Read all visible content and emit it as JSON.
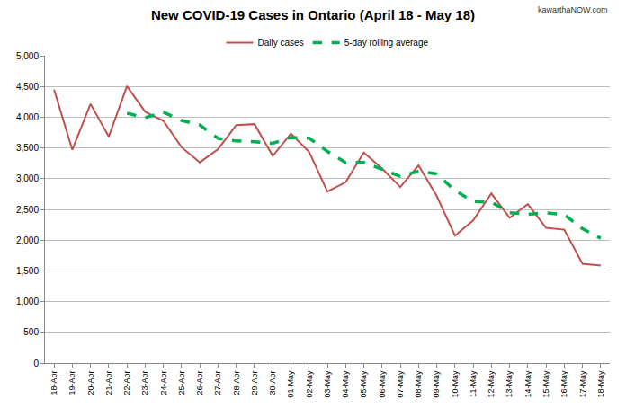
{
  "chart_data": {
    "type": "line",
    "title": "New COVID-19 Cases in Ontario (April 18 - May 18)",
    "annotations": [
      "kawarthaNOW.com"
    ],
    "categories": [
      "18-Apr",
      "19-Apr",
      "20-Apr",
      "21-Apr",
      "22-Apr",
      "23-Apr",
      "24-Apr",
      "25-Apr",
      "26-Apr",
      "27-Apr",
      "28-Apr",
      "29-Apr",
      "30-Apr",
      "01-May",
      "02-May",
      "03-May",
      "04-May",
      "05-May",
      "06-May",
      "07-May",
      "08-May",
      "09-May",
      "10-May",
      "11-May",
      "12-May",
      "13-May",
      "14-May",
      "15-May",
      "16-May",
      "17-May",
      "18-May"
    ],
    "series": [
      {
        "name": "Daily cases",
        "color": "#c0504d",
        "line_style": "solid",
        "values": [
          4447,
          3469,
          4216,
          3684,
          4505,
          4087,
          3940,
          3510,
          3265,
          3480,
          3871,
          3887,
          3369,
          3732,
          3436,
          2791,
          2941,
          3424,
          3166,
          2864,
          3216,
          2719,
          2073,
          2320,
          2759,
          2362,
          2584,
          2199,
          2170,
          1616,
          1588
        ]
      },
      {
        "name": "5-day rolling average",
        "color": "#00b050",
        "line_style": "dashed",
        "values": [
          null,
          null,
          null,
          null,
          4064,
          3992,
          4082,
          3947,
          3873,
          3656,
          3613,
          3601,
          3574,
          3668,
          3659,
          3443,
          3261,
          3265,
          3152,
          3037,
          3122,
          3078,
          2808,
          2627,
          2617,
          2447,
          2420,
          2445,
          2415,
          2186,
          2031
        ]
      }
    ],
    "ylim": [
      0,
      5000
    ],
    "yticks": [
      0,
      500,
      {
        "value": 1000,
        "label": "1,000"
      },
      {
        "value": 1500,
        "label": "1,500"
      },
      {
        "value": 2000,
        "label": "2,000"
      },
      {
        "value": 2500,
        "label": "2,500"
      },
      {
        "value": 3000,
        "label": "3,000"
      },
      {
        "value": 3500,
        "label": "3,500"
      },
      {
        "value": 4000,
        "label": "4,000"
      },
      {
        "value": 4500,
        "label": "4,500"
      },
      {
        "value": 5000,
        "label": "5,000"
      }
    ],
    "grid": true,
    "legend": "top"
  }
}
